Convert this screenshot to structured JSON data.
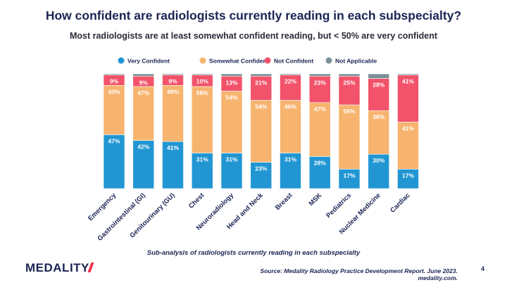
{
  "slide": {
    "title": "How confident are radiologists currently reading in each subspecialty?",
    "subtitle": "Most radiologists are at least somewhat confident reading, but < 50% are very confident",
    "note": "Sub-analysis of radiologists currently reading in each subspecialty",
    "logo": "MEDALITY",
    "source": "Source: Medality Radiology Practice Development Report. June 2023. medality.com.",
    "page_number": "4"
  },
  "chart_data": {
    "type": "bar",
    "stacked": true,
    "orientation": "vertical",
    "value_format": "percent",
    "ylim": [
      0,
      100
    ],
    "grid": false,
    "legend_position": "top",
    "categories": [
      "Emergency",
      "Gastrointestinal (GI)",
      "Genitourinary (GU)",
      "Chest",
      "Neuroradiology",
      "Head and Neck",
      "Breast",
      "MSK",
      "Pediatrics",
      "Nuclear Medicine",
      "Cardiac"
    ],
    "series": [
      {
        "name": "Very Confident",
        "color": "#2196d3",
        "values": [
          47,
          42,
          41,
          31,
          31,
          23,
          31,
          28,
          17,
          30,
          17
        ]
      },
      {
        "name": "Somewhat Confident",
        "color": "#f7b46f",
        "values": [
          43,
          47,
          49,
          58,
          54,
          54,
          46,
          47,
          56,
          38,
          41
        ]
      },
      {
        "name": "Not Confident",
        "color": "#f2526a",
        "values": [
          9,
          9,
          9,
          10,
          13,
          21,
          22,
          23,
          25,
          28,
          41
        ]
      },
      {
        "name": "Not Applicable",
        "color": "#7b9097",
        "values": [
          1,
          2,
          1,
          1,
          2,
          2,
          1,
          2,
          2,
          4,
          1
        ]
      }
    ]
  }
}
